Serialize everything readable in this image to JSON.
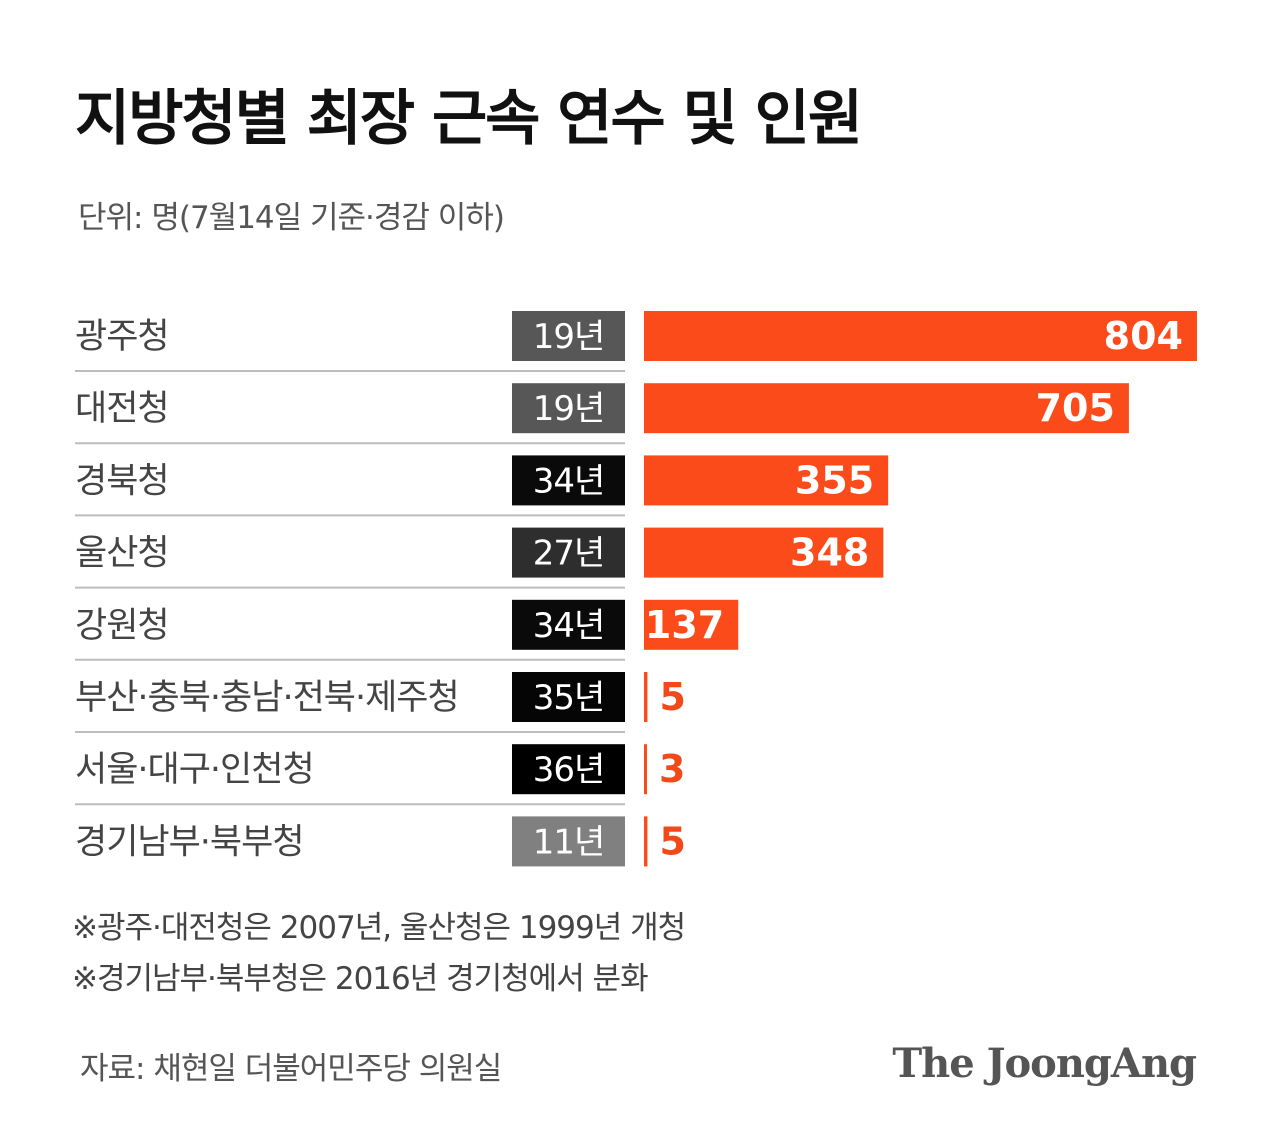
{
  "title": "지방청별 최장 근속 연수 및 인원",
  "subtitle": "단위: 명(7월14일 기준·경감 이하)",
  "notes": [
    "※광주·대전청은 2007년, 울산청은 1999년 개청",
    "※경기남부·북부청은 2016년 경기청에서 분화"
  ],
  "source": "자료: 채현일 더불어민주당 의원실",
  "logo": "The JoongAng",
  "colors": {
    "bar": "#fb4b1a",
    "value_outside": "#f04a1a",
    "divider": "#bdbdbd"
  },
  "chart_data": {
    "type": "bar",
    "orientation": "horizontal",
    "categories": [
      "광주청",
      "대전청",
      "경북청",
      "울산청",
      "강원청",
      "부산·충북·충남·전북·제주청",
      "서울·대구·인천청",
      "경기남부·북부청"
    ],
    "years_label": [
      "19년",
      "19년",
      "34년",
      "27년",
      "34년",
      "35년",
      "36년",
      "11년"
    ],
    "years": [
      19,
      19,
      34,
      27,
      34,
      35,
      36,
      11
    ],
    "values": [
      804,
      705,
      355,
      348,
      137,
      5,
      3,
      5
    ],
    "xlim": [
      0,
      804
    ]
  }
}
